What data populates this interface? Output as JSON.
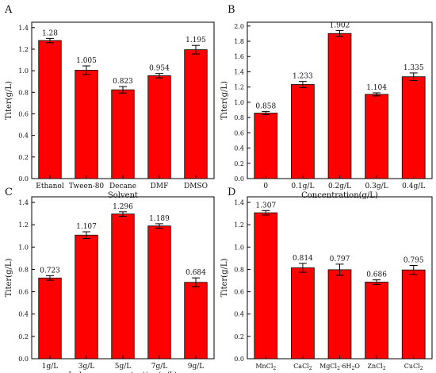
{
  "chart_data": [
    {
      "type": "bar",
      "panel": "A",
      "categories": [
        "Ethanol",
        "Tween-80",
        "Decane",
        "DMF",
        "DMSO"
      ],
      "values": [
        1.28,
        1.005,
        0.823,
        0.954,
        1.195
      ],
      "errors": [
        0.02,
        0.04,
        0.03,
        0.02,
        0.04
      ],
      "data_labels": [
        "1.28",
        "1.005",
        "0.823",
        "0.954",
        "1.195"
      ],
      "xlabel": "Solvent",
      "ylabel": "Titer(g/L)",
      "ylim": [
        0,
        1.45
      ],
      "yticks": [
        0.0,
        0.2,
        0.4,
        0.6,
        0.8,
        1.0,
        1.2,
        1.4
      ],
      "ytick_labels": [
        "0.0",
        "0.2",
        "0.4",
        "0.6",
        "0.8",
        "1.0",
        "1.2",
        "1.4"
      ],
      "bar_color": "#ff0000"
    },
    {
      "type": "bar",
      "panel": "B",
      "categories": [
        "0",
        "0.1g/L",
        "0.2g/L",
        "0.3g/L",
        "0.4g/L"
      ],
      "values": [
        0.858,
        1.233,
        1.902,
        1.104,
        1.335
      ],
      "errors": [
        0.02,
        0.04,
        0.04,
        0.02,
        0.05
      ],
      "data_labels": [
        "0.858",
        "1.233",
        "1.902",
        "1.104",
        "1.335"
      ],
      "xlabel": "Concentration(g/L)",
      "ylabel": "Titer(g/L)",
      "ylim": [
        0,
        2.05
      ],
      "yticks": [
        0.0,
        0.2,
        0.4,
        0.6,
        0.8,
        1.0,
        1.2,
        1.4,
        1.6,
        1.8,
        2.0
      ],
      "ytick_labels": [
        "0.0",
        "0.2",
        "0.4",
        "0.6",
        "0.8",
        "1.0",
        "1.2",
        "1.4",
        "1.6",
        "1.8",
        "2.0"
      ],
      "bar_color": "#ff0000"
    },
    {
      "type": "bar",
      "panel": "C",
      "categories": [
        "1g/L",
        "3g/L",
        "5g/L",
        "7g/L",
        "9g/L"
      ],
      "values": [
        0.723,
        1.107,
        1.296,
        1.189,
        0.684
      ],
      "errors": [
        0.02,
        0.03,
        0.02,
        0.02,
        0.04
      ],
      "data_labels": [
        "0.723",
        "1.107",
        "1.296",
        "1.189",
        "0.684"
      ],
      "xlabel": "Inducer concentration(g/L)",
      "ylabel": "Titer(g/L)",
      "ylim": [
        0,
        1.45
      ],
      "yticks": [
        0.0,
        0.2,
        0.4,
        0.6,
        0.8,
        1.0,
        1.2,
        1.4
      ],
      "ytick_labels": [
        "0.0",
        "0.2",
        "0.4",
        "0.6",
        "0.8",
        "1.0",
        "1.2",
        "1.4"
      ],
      "bar_color": "#ff0000"
    },
    {
      "type": "bar",
      "panel": "D",
      "categories": [
        "MnCl2",
        "CaCl2",
        "MgCl2·6H2O",
        "ZnCl2",
        "CuCl2"
      ],
      "category_display": [
        {
          "main": "MnCl",
          "sub": "2",
          "rest": ""
        },
        {
          "main": "CaCl",
          "sub": "2",
          "rest": ""
        },
        {
          "main": "MgCl",
          "sub": "2",
          "rest": "·6H",
          "sub2": "2",
          "tail": "O"
        },
        {
          "main": "ZnCl",
          "sub": "2",
          "rest": ""
        },
        {
          "main": "CuCl",
          "sub": "2",
          "rest": ""
        }
      ],
      "values": [
        1.307,
        0.814,
        0.797,
        0.686,
        0.795
      ],
      "errors": [
        0.02,
        0.04,
        0.05,
        0.02,
        0.04
      ],
      "data_labels": [
        "1.307",
        "0.814",
        "0.797",
        "0.686",
        "0.795"
      ],
      "xlabel": "Metal compounds",
      "ylabel": "Titer(g/L)",
      "ylim": [
        0,
        1.45
      ],
      "yticks": [
        0.0,
        0.2,
        0.4,
        0.6,
        0.8,
        1.0,
        1.2,
        1.4
      ],
      "ytick_labels": [
        "0.0",
        "0.2",
        "0.4",
        "0.6",
        "0.8",
        "1.0",
        "1.2",
        "1.4"
      ],
      "bar_color": "#ff0000"
    }
  ]
}
